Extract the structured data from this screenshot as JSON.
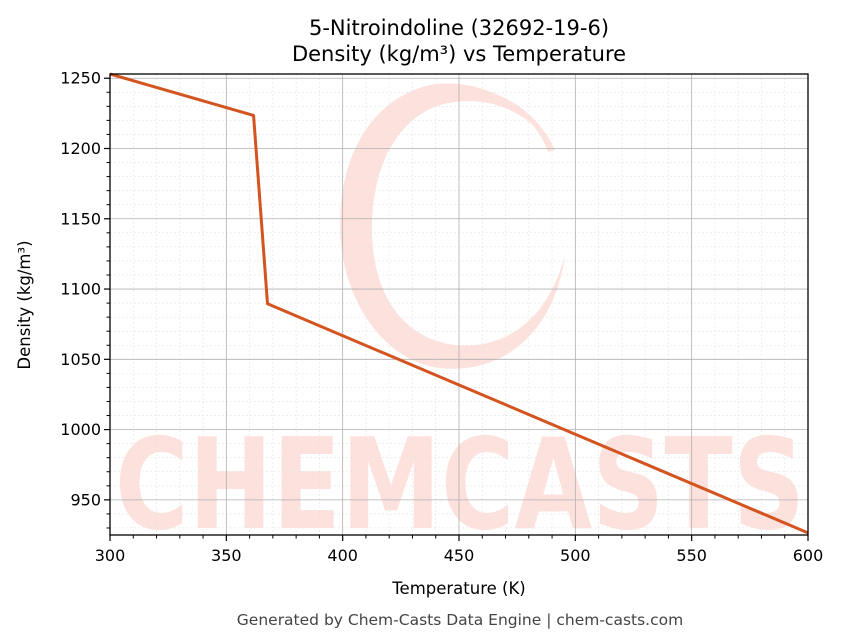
{
  "chart_data": {
    "type": "line",
    "title": "5-Nitroindoline (32692-19-6)",
    "subtitle": "Density (kg/m³) vs Temperature",
    "xlabel": "Temperature (K)",
    "ylabel": "Density (kg/m³)",
    "xlim": [
      300,
      600
    ],
    "ylim": [
      925,
      1253
    ],
    "xticks": [
      300,
      350,
      400,
      450,
      500,
      550,
      600
    ],
    "yticks": [
      950,
      1000,
      1050,
      1100,
      1150,
      1200,
      1250
    ],
    "grid": true,
    "legend": "none",
    "series": [
      {
        "color": "#d4541f",
        "x": [
          300,
          361.7,
          367.7,
          600
        ],
        "y": [
          1253,
          1223.5,
          1089.5,
          926.5
        ]
      }
    ]
  },
  "watermark": {
    "text": "CHEMCASTS",
    "color": "#fde1dc"
  },
  "footer": "Generated by Chem-Casts Data Engine | chem-casts.com"
}
